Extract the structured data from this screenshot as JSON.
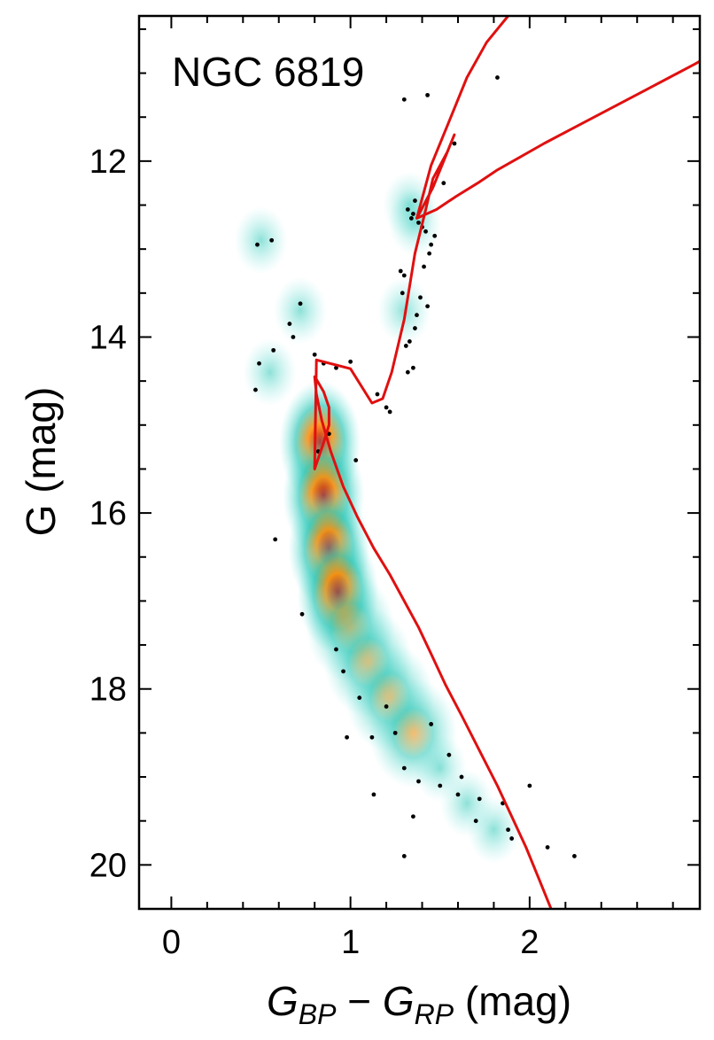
{
  "chart_data": {
    "type": "scatter",
    "annotation": "NGC 6819",
    "xlabel": {
      "main": "G",
      "sub1": "BP",
      "minus": " − ",
      "main2": "G",
      "sub2": "RP",
      "unit": " (mag)"
    },
    "ylabel": "G (mag)",
    "xlim": [
      -0.18,
      2.95
    ],
    "ylim": [
      20.5,
      10.35
    ],
    "y_inverted": true,
    "grid": false,
    "xticks": [
      0,
      1,
      2
    ],
    "yticks": [
      12,
      14,
      16,
      18,
      20
    ],
    "colors": {
      "isochrone": "#e01010",
      "points": "#000000",
      "density_low": "#7fe8e2",
      "density_mid": "#30c8b8",
      "density_high": "#ff8a00",
      "density_peak": "#b00000"
    },
    "density_centers": [
      {
        "x": 0.83,
        "y": 15.2,
        "level": "high"
      },
      {
        "x": 0.85,
        "y": 15.8,
        "level": "high"
      },
      {
        "x": 0.88,
        "y": 16.4,
        "level": "high"
      },
      {
        "x": 0.93,
        "y": 16.9,
        "level": "high"
      },
      {
        "x": 1.0,
        "y": 17.3,
        "level": "mid"
      },
      {
        "x": 1.1,
        "y": 17.7,
        "level": "mid"
      },
      {
        "x": 1.22,
        "y": 18.1,
        "level": "mid"
      },
      {
        "x": 1.35,
        "y": 18.5,
        "level": "mid"
      },
      {
        "x": 1.5,
        "y": 18.9,
        "level": "low"
      },
      {
        "x": 1.65,
        "y": 19.3,
        "level": "low"
      },
      {
        "x": 1.8,
        "y": 19.6,
        "level": "low"
      },
      {
        "x": 1.36,
        "y": 12.7,
        "level": "low"
      },
      {
        "x": 1.33,
        "y": 12.5,
        "level": "low"
      },
      {
        "x": 1.3,
        "y": 13.7,
        "level": "low"
      },
      {
        "x": 0.55,
        "y": 14.4,
        "level": "low"
      },
      {
        "x": 0.5,
        "y": 12.9,
        "level": "low"
      },
      {
        "x": 0.72,
        "y": 13.7,
        "level": "low"
      }
    ],
    "isochrone": {
      "x": [
        2.12,
        2.05,
        1.98,
        1.9,
        1.82,
        1.72,
        1.62,
        1.53,
        1.45,
        1.38,
        1.3,
        1.22,
        1.13,
        1.04,
        0.96,
        0.89,
        0.84,
        0.81,
        0.8,
        0.81,
        0.85,
        0.88,
        0.88,
        0.85,
        0.8,
        0.81,
        1.0,
        1.12,
        1.18,
        1.23,
        1.3,
        1.36,
        1.42,
        1.46,
        1.54,
        1.58,
        1.46,
        1.37,
        1.48,
        1.59,
        1.71,
        1.82,
        1.95,
        2.08,
        2.22,
        2.36,
        2.5,
        2.64,
        2.78,
        2.92,
        3.05
      ],
      "y": [
        20.5,
        20.15,
        19.8,
        19.45,
        19.1,
        18.7,
        18.3,
        17.95,
        17.6,
        17.3,
        17.0,
        16.7,
        16.4,
        16.05,
        15.7,
        15.3,
        14.95,
        14.65,
        14.45,
        14.48,
        14.62,
        14.8,
        15.0,
        15.2,
        15.5,
        14.26,
        14.36,
        14.75,
        14.7,
        14.4,
        13.8,
        13.05,
        12.55,
        12.2,
        11.9,
        11.7,
        12.3,
        12.65,
        12.55,
        12.4,
        12.25,
        12.1,
        11.95,
        11.8,
        11.65,
        11.5,
        11.35,
        11.2,
        11.05,
        10.9,
        10.75
      ]
    },
    "isochrone_branch": {
      "x": [
        1.37,
        1.45,
        1.55,
        1.65,
        1.76,
        1.88,
        1.98,
        2.08,
        2.2
      ],
      "y": [
        12.65,
        12.05,
        11.55,
        11.05,
        10.65,
        10.35,
        10.15,
        10.05,
        10.0
      ]
    },
    "points": {
      "x": [
        1.82,
        1.3,
        1.43,
        1.58,
        1.52,
        1.36,
        1.35,
        1.32,
        1.38,
        1.42,
        1.47,
        1.4,
        1.34,
        1.45,
        1.44,
        1.41,
        1.39,
        1.43,
        1.37,
        1.36,
        1.33,
        1.35,
        1.32,
        1.31,
        1.29,
        1.3,
        1.28,
        0.48,
        0.56,
        0.72,
        0.66,
        0.68,
        0.49,
        0.57,
        0.47,
        0.8,
        0.85,
        0.92,
        1.0,
        1.15,
        1.2,
        1.22,
        0.88,
        0.82,
        1.03,
        0.58,
        0.73,
        0.92,
        0.96,
        1.05,
        1.12,
        1.2,
        1.25,
        1.3,
        1.38,
        1.5,
        1.6,
        1.72,
        1.85,
        1.9,
        2.0,
        2.1,
        2.25,
        1.35,
        1.3,
        1.13,
        0.98,
        1.88,
        1.7,
        1.62,
        1.55,
        1.45
      ],
      "y": [
        11.05,
        11.3,
        11.25,
        11.8,
        12.25,
        12.45,
        12.6,
        12.55,
        12.7,
        12.8,
        12.85,
        12.75,
        12.65,
        12.95,
        13.05,
        13.2,
        13.55,
        13.65,
        13.75,
        13.9,
        14.05,
        14.35,
        14.4,
        14.1,
        13.5,
        13.3,
        13.25,
        12.95,
        12.9,
        13.62,
        13.85,
        14.0,
        14.3,
        14.15,
        14.6,
        14.2,
        14.3,
        14.35,
        14.28,
        14.65,
        14.8,
        14.85,
        15.1,
        15.3,
        15.4,
        16.3,
        17.15,
        17.55,
        17.8,
        18.1,
        18.55,
        18.2,
        18.5,
        18.9,
        19.05,
        19.1,
        19.2,
        19.25,
        19.3,
        19.7,
        19.1,
        19.8,
        19.9,
        19.45,
        19.9,
        19.2,
        18.55,
        19.6,
        19.5,
        19.0,
        18.75,
        18.4
      ]
    }
  }
}
